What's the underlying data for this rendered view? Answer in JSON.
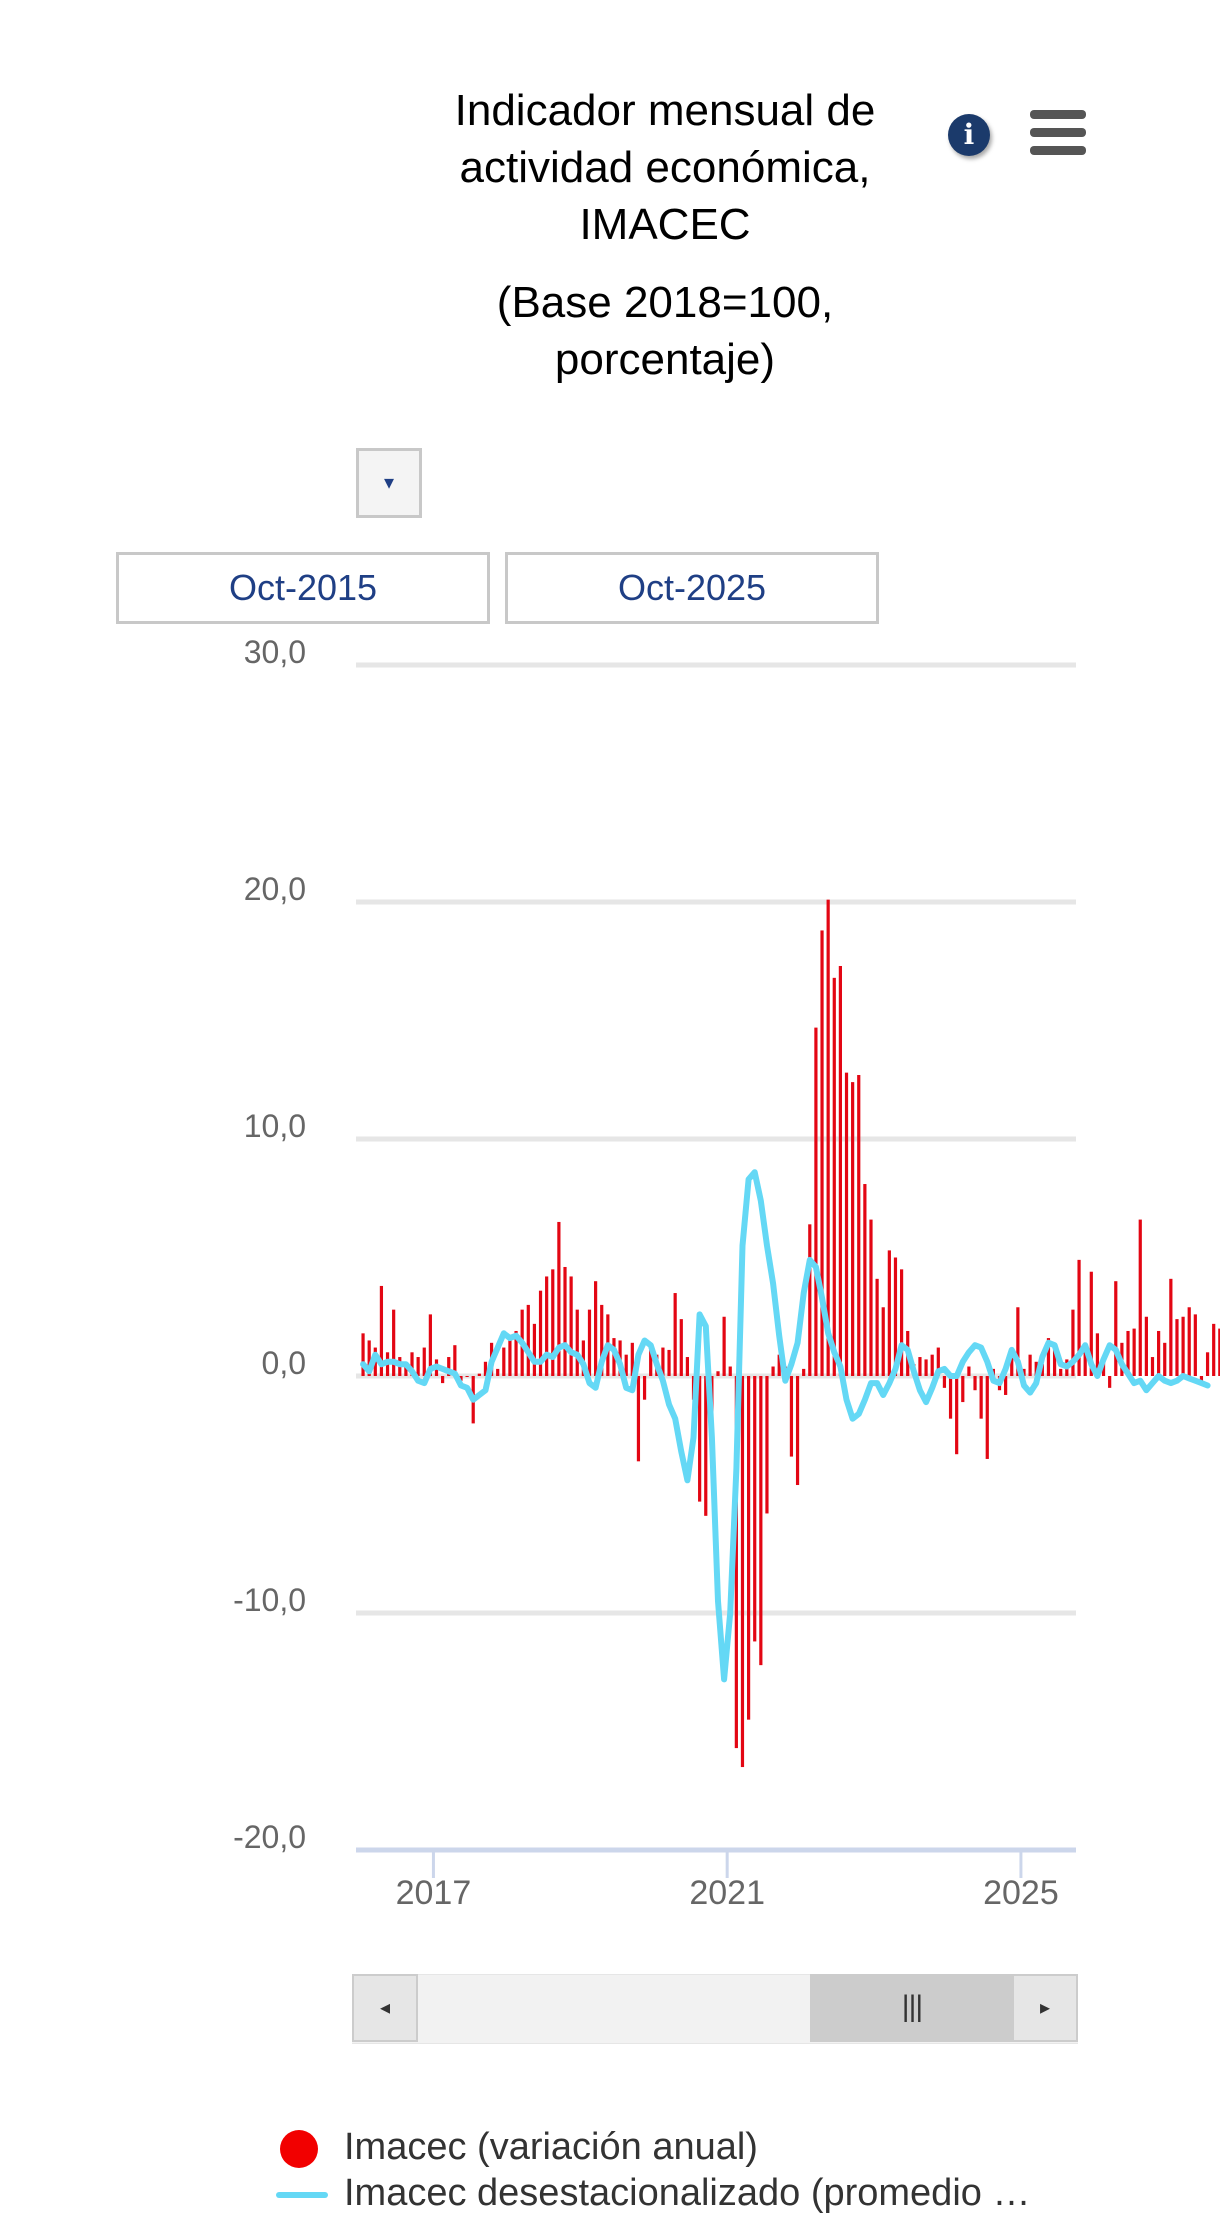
{
  "header": {
    "title_lines": [
      "Indicador mensual de",
      "actividad económica,",
      "IMACEC"
    ],
    "subtitle_lines": [
      "(Base 2018=100,",
      "porcentaje)"
    ]
  },
  "controls": {
    "dropdown_glyph": "▾",
    "date_from": "Oct-2015",
    "date_to": "Oct-2025",
    "info_icon": "info-icon",
    "menu_icon": "hamburger-menu-icon"
  },
  "scrollbar": {
    "left_glyph": "◂",
    "right_glyph": "▸",
    "thumb_glyph": "|||"
  },
  "legend": {
    "bar_label": "Imacec (variación anual)",
    "line_label": "Imacec desestacionalizado (promedio …"
  },
  "colors": {
    "bars": "#e30613",
    "line": "#64d8f5",
    "grid": "#e6e6e6",
    "axis_text": "#666666"
  },
  "chart_data": {
    "type": "bar+line",
    "yticks": [
      "30,0",
      "20,0",
      "10,0",
      "0,0",
      "-10,0",
      "-20,0"
    ],
    "ylim": [
      -20,
      30
    ],
    "xticks": [
      "2017",
      "2021",
      "2025"
    ],
    "x_start": "2016-01",
    "x_end": "2025-09",
    "series": [
      {
        "name": "Imacec (variación anual)",
        "kind": "bar",
        "values": [
          1.8,
          1.5,
          1.2,
          3.8,
          1.0,
          2.8,
          0.8,
          0.4,
          1.0,
          0.8,
          1.2,
          2.6,
          0.7,
          -0.3,
          0.8,
          1.3,
          -0.2,
          0.0,
          -2.0,
          0.1,
          0.6,
          1.4,
          0.3,
          1.2,
          1.5,
          1.9,
          2.8,
          3.0,
          2.2,
          3.6,
          4.2,
          4.5,
          6.5,
          4.6,
          4.2,
          2.8,
          1.5,
          2.8,
          4.0,
          3.0,
          2.6,
          1.6,
          1.5,
          0.9,
          1.4,
          -3.6,
          -1.0,
          1.3,
          0.9,
          1.2,
          1.1,
          3.5,
          2.4,
          0.8,
          -1.0,
          -5.3,
          -5.9,
          -3.2,
          0.2,
          2.5,
          0.4,
          -15.7,
          -16.5,
          -14.5,
          -11.2,
          -12.2,
          -5.8,
          0.4,
          0.9,
          0.4,
          -3.4,
          -4.6,
          0.3,
          6.4,
          14.7,
          18.8,
          20.1,
          16.8,
          17.3,
          12.8,
          12.4,
          12.7,
          8.1,
          6.6,
          4.1,
          2.9,
          5.3,
          5.0,
          4.5,
          1.9,
          0.5,
          0.8,
          0.7,
          0.9,
          1.2,
          -0.5,
          -1.8,
          -3.3,
          -1.1,
          0.4,
          -0.6,
          -1.8,
          -3.5,
          0.3,
          -0.6,
          -0.8,
          1.2,
          2.9,
          0.3,
          0.9,
          0.6,
          0.5,
          1.6,
          1.2,
          0.3,
          0.7,
          2.8,
          4.9,
          1.4,
          4.4,
          1.8,
          0.7,
          -0.5,
          4.0,
          1.4,
          1.9,
          2.0,
          6.6,
          2.5,
          0.8,
          1.9,
          1.4,
          4.1,
          2.4,
          2.5,
          2.9,
          2.6,
          -0.4,
          1.0,
          2.2,
          2.0
        ]
      },
      {
        "name": "Imacec desestacionalizado (promedio …",
        "kind": "line",
        "values": [
          0.5,
          0.2,
          0.9,
          0.5,
          0.6,
          0.6,
          0.5,
          0.5,
          0.2,
          -0.2,
          -0.3,
          0.3,
          0.4,
          0.3,
          0.2,
          0.1,
          -0.4,
          -0.5,
          -1.0,
          -0.8,
          -0.6,
          0.6,
          1.2,
          1.8,
          1.6,
          1.7,
          1.4,
          1.0,
          0.6,
          0.6,
          0.9,
          0.8,
          1.2,
          1.3,
          1.0,
          0.9,
          0.5,
          -0.3,
          -0.5,
          0.6,
          1.3,
          1.1,
          0.5,
          -0.5,
          -0.6,
          0.9,
          1.5,
          1.3,
          0.5,
          -0.2,
          -1.2,
          -1.8,
          -3.2,
          -4.4,
          -2.6,
          2.6,
          2.1,
          -2.6,
          -9.5,
          -12.8,
          -10.0,
          -3.9,
          5.5,
          8.3,
          8.6,
          7.4,
          5.5,
          3.9,
          1.7,
          -0.2,
          0.5,
          1.4,
          3.5,
          4.9,
          4.6,
          3.3,
          1.8,
          1.0,
          0.4,
          -1.0,
          -1.8,
          -1.6,
          -1.0,
          -0.3,
          -0.3,
          -0.8,
          -0.3,
          0.3,
          1.3,
          1.1,
          0.2,
          -0.6,
          -1.1,
          -0.5,
          0.2,
          0.3,
          0.0,
          0.0,
          0.6,
          1.0,
          1.3,
          1.2,
          0.6,
          -0.2,
          -0.3,
          0.3,
          1.1,
          0.6,
          -0.4,
          -0.7,
          -0.3,
          0.8,
          1.4,
          1.3,
          0.5,
          0.4,
          0.6,
          0.9,
          1.3,
          0.5,
          0.0,
          0.7,
          1.3,
          1.1,
          0.5,
          0.1,
          -0.3,
          -0.2,
          -0.6,
          -0.3,
          0.0,
          -0.2,
          -0.3,
          -0.2,
          0.0,
          -0.1,
          -0.2,
          -0.3,
          -0.4
        ]
      }
    ]
  }
}
